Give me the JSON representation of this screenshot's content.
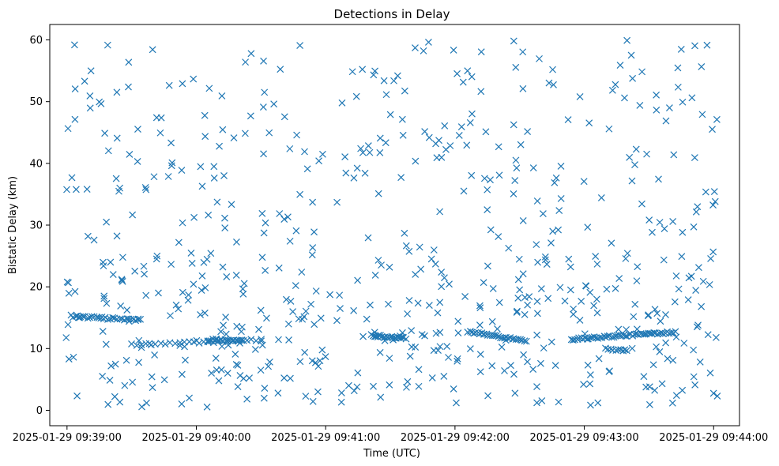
{
  "chart_data": {
    "type": "scatter",
    "title": "Detections in Delay",
    "xlabel": "Time (UTC)",
    "ylabel": "Bistatic Delay (km)",
    "marker": "x",
    "series_color": "#1f77b4",
    "xlim": [
      -8,
      312
    ],
    "ylim": [
      -2.5,
      62.5
    ],
    "grid": false,
    "x_unit": "seconds after 2025-01-29 09:39:00",
    "x_ticks": [
      0,
      60,
      120,
      180,
      240,
      300
    ],
    "x_tick_labels": [
      "2025-01-29 09:39:00",
      "2025-01-29 09:40:00",
      "2025-01-29 09:41:00",
      "2025-01-29 09:42:00",
      "2025-01-29 09:43:00",
      "2025-01-29 09:44:00"
    ],
    "y_ticks": [
      0,
      10,
      20,
      30,
      40,
      50,
      60
    ],
    "y_tick_labels": [
      "0",
      "10",
      "20",
      "30",
      "40",
      "50",
      "60"
    ],
    "point_count": 820,
    "scatter_seed": 12345,
    "noise_x_range": [
      -2,
      302
    ],
    "noise_y_range": [
      0.5,
      60
    ],
    "tracks": [
      {
        "x_start": 3,
        "x_end": 34,
        "y_start": 15.2,
        "y_end": 14.6,
        "count": 30
      },
      {
        "x_start": 30,
        "x_end": 90,
        "y_start": 10.6,
        "y_end": 11.4,
        "count": 28
      },
      {
        "x_start": 65,
        "x_end": 82,
        "y_start": 11.4,
        "y_end": 11.3,
        "count": 20
      },
      {
        "x_start": 142,
        "x_end": 157,
        "y_start": 12.1,
        "y_end": 11.7,
        "count": 22
      },
      {
        "x_start": 186,
        "x_end": 213,
        "y_start": 12.7,
        "y_end": 11.3,
        "count": 30
      },
      {
        "x_start": 234,
        "x_end": 282,
        "y_start": 11.5,
        "y_end": 12.7,
        "count": 55
      },
      {
        "x_start": 250,
        "x_end": 260,
        "y_start": 10.0,
        "y_end": 9.7,
        "count": 10
      }
    ]
  }
}
